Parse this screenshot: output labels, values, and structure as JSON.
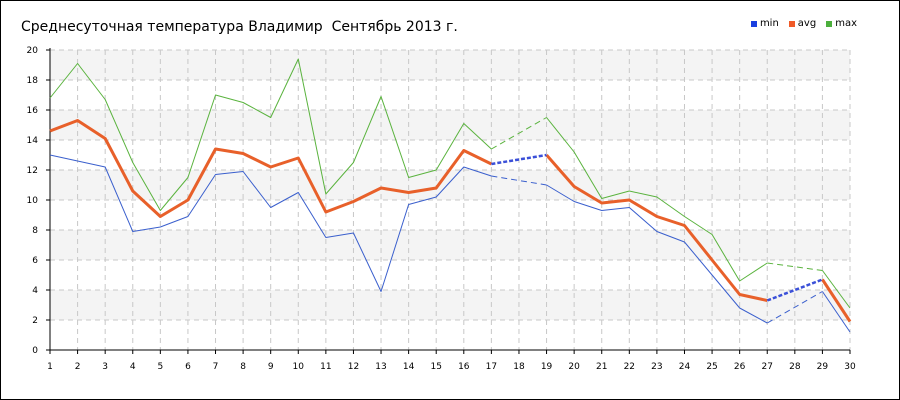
{
  "chart_data": {
    "type": "line",
    "title": "Среднесуточная температура Владимир  Сентябрь 2013 г.",
    "x": [
      "1",
      "2",
      "3",
      "4",
      "5",
      "6",
      "7",
      "8",
      "9",
      "10",
      "11",
      "12",
      "13",
      "14",
      "15",
      "16",
      "17",
      "18",
      "19",
      "20",
      "21",
      "22",
      "23",
      "24",
      "25",
      "26",
      "27",
      "28",
      "29",
      "30"
    ],
    "ylim": [
      0,
      20
    ],
    "y_ticks": [
      "0",
      "2",
      "4",
      "6",
      "8",
      "10",
      "12",
      "14",
      "16",
      "18",
      "20"
    ],
    "grid": true,
    "legend_position": "top-right",
    "gaps": [
      "18",
      "28"
    ],
    "series": [
      {
        "name": "min",
        "color": "#3a5fcd",
        "legend_color": "#1a3fe0",
        "values": [
          13.0,
          12.6,
          12.2,
          7.9,
          8.2,
          8.9,
          11.7,
          11.9,
          9.5,
          10.5,
          7.5,
          7.8,
          3.9,
          9.7,
          10.2,
          12.2,
          11.6,
          null,
          11.0,
          9.9,
          9.3,
          9.5,
          7.9,
          7.2,
          5.0,
          2.8,
          1.8,
          null,
          3.9,
          1.2
        ]
      },
      {
        "name": "avg",
        "color": "#e8602a",
        "legend_color": "#f05a28",
        "values": [
          14.6,
          15.3,
          14.1,
          10.6,
          8.9,
          10.0,
          13.4,
          13.1,
          12.2,
          12.8,
          9.2,
          9.9,
          10.8,
          10.5,
          10.8,
          13.3,
          12.4,
          null,
          13.0,
          10.9,
          9.8,
          10.0,
          8.9,
          8.3,
          6.0,
          3.7,
          3.3,
          null,
          4.7,
          1.9
        ]
      },
      {
        "name": "max",
        "color": "#5ab33e",
        "legend_color": "#4caf3c",
        "values": [
          16.8,
          19.1,
          16.7,
          12.5,
          9.3,
          11.5,
          17.0,
          16.5,
          15.5,
          19.4,
          10.4,
          12.5,
          16.9,
          11.5,
          12.0,
          15.1,
          13.4,
          null,
          15.5,
          13.2,
          10.1,
          10.6,
          10.2,
          8.9,
          7.7,
          4.6,
          5.8,
          null,
          5.3,
          2.8
        ]
      }
    ]
  }
}
